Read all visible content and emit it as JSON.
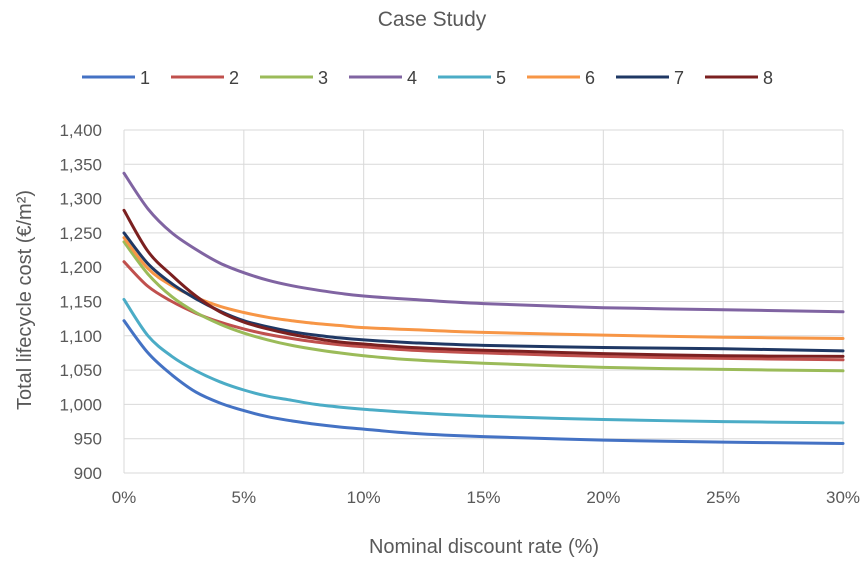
{
  "chart_data": {
    "type": "line",
    "title": "Case Study",
    "xlabel": "Nominal discount rate (%)",
    "ylabel": "Total lifecycle cost (€/m²)",
    "xlim": [
      0,
      30
    ],
    "ylim": [
      900,
      1400
    ],
    "x_ticks": [
      0,
      5,
      10,
      15,
      20,
      25,
      30
    ],
    "x_tick_labels": [
      "0%",
      "5%",
      "10%",
      "15%",
      "20%",
      "25%",
      "30%"
    ],
    "y_ticks": [
      900,
      950,
      1000,
      1050,
      1100,
      1150,
      1200,
      1250,
      1300,
      1350,
      1400
    ],
    "y_tick_labels": [
      "900",
      "950",
      "1,000",
      "1,050",
      "1,100",
      "1,150",
      "1,200",
      "1,250",
      "1,300",
      "1,350",
      "1,400"
    ],
    "grid": "vertical and horizontal",
    "legend_position": "top",
    "x": [
      0,
      1,
      2,
      3,
      4,
      5,
      6,
      7,
      8,
      9,
      10,
      12,
      15,
      20,
      25,
      30
    ],
    "series": [
      {
        "name": "1",
        "color": "#4472c4",
        "values": [
          1122,
          1075,
          1043,
          1018,
          1002,
          991,
          982,
          976,
          971,
          967,
          964,
          958,
          953,
          948,
          945,
          943
        ]
      },
      {
        "name": "2",
        "color": "#c0504d",
        "values": [
          1208,
          1172,
          1150,
          1133,
          1120,
          1110,
          1102,
          1096,
          1091,
          1087,
          1084,
          1079,
          1075,
          1070,
          1067,
          1065
        ]
      },
      {
        "name": "3",
        "color": "#9bbb59",
        "values": [
          1237,
          1190,
          1157,
          1134,
          1117,
          1104,
          1094,
          1086,
          1080,
          1075,
          1071,
          1065,
          1060,
          1054,
          1051,
          1049
        ]
      },
      {
        "name": "4",
        "color": "#8064a2",
        "values": [
          1337,
          1285,
          1250,
          1226,
          1206,
          1192,
          1181,
          1173,
          1167,
          1162,
          1158,
          1153,
          1147,
          1141,
          1138,
          1135
        ]
      },
      {
        "name": "5",
        "color": "#4bacc6",
        "values": [
          1153,
          1100,
          1070,
          1049,
          1033,
          1021,
          1012,
          1006,
          1000,
          996,
          993,
          988,
          983,
          978,
          975,
          973
        ]
      },
      {
        "name": "6",
        "color": "#f79646",
        "values": [
          1243,
          1198,
          1173,
          1156,
          1143,
          1134,
          1127,
          1122,
          1118,
          1115,
          1112,
          1109,
          1105,
          1101,
          1098,
          1096
        ]
      },
      {
        "name": "7",
        "color": "#1f3864",
        "values": [
          1250,
          1205,
          1176,
          1154,
          1136,
          1122,
          1113,
          1106,
          1101,
          1097,
          1094,
          1090,
          1086,
          1083,
          1081,
          1078
        ]
      },
      {
        "name": "8",
        "color": "#7b2020",
        "values": [
          1283,
          1223,
          1188,
          1158,
          1135,
          1120,
          1110,
          1102,
          1096,
          1091,
          1088,
          1083,
          1079,
          1074,
          1071,
          1070
        ]
      }
    ]
  }
}
